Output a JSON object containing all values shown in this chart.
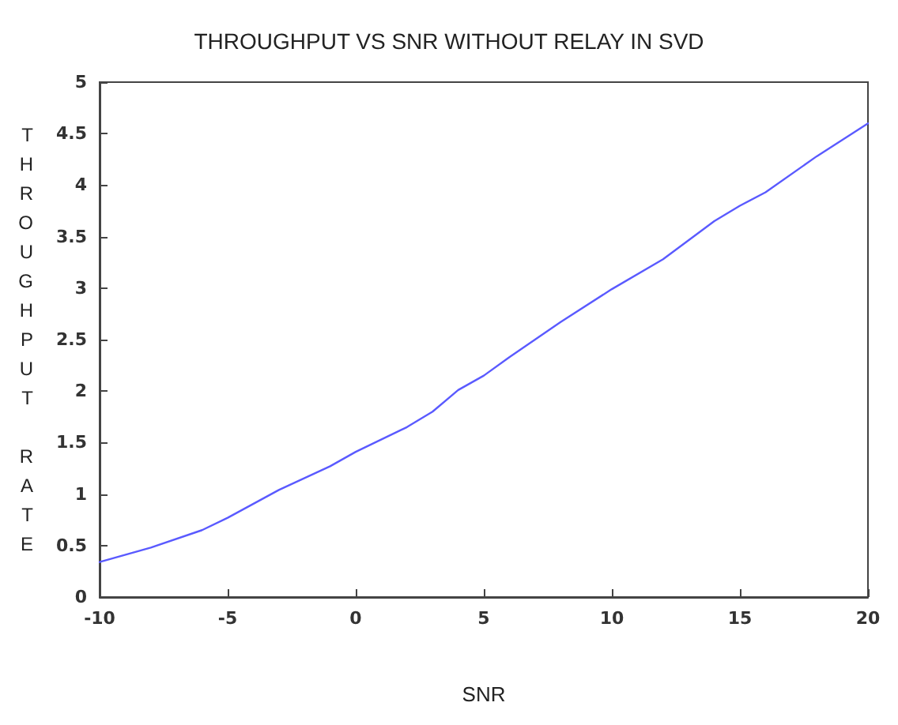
{
  "chart_data": {
    "type": "line",
    "title": "THROUGHPUT VS SNR WITHOUT RELAY IN SVD",
    "xlabel": "SNR",
    "ylabel": "THROUGHPUT RATE",
    "x": [
      -10,
      -8,
      -6,
      -5,
      -3,
      -1,
      0,
      2,
      3,
      4,
      5,
      6,
      8,
      10,
      12,
      14,
      15,
      16,
      18,
      20
    ],
    "series": [
      {
        "color": "#5a5aff",
        "values": [
          0.34,
          0.48,
          0.65,
          0.77,
          1.04,
          1.27,
          1.41,
          1.65,
          1.8,
          2.01,
          2.15,
          2.33,
          2.67,
          2.99,
          3.28,
          3.65,
          3.8,
          3.93,
          4.28,
          4.6
        ]
      }
    ],
    "xlim": [
      -10,
      20
    ],
    "xticks": [
      -10,
      -5,
      0,
      5,
      10,
      15,
      20
    ],
    "ylim": [
      0,
      5
    ],
    "yticks": [
      0,
      0.5,
      1,
      1.5,
      2,
      2.5,
      3,
      3.5,
      4,
      4.5,
      5
    ],
    "grid": false,
    "marker": "none",
    "line_style": "solid"
  }
}
